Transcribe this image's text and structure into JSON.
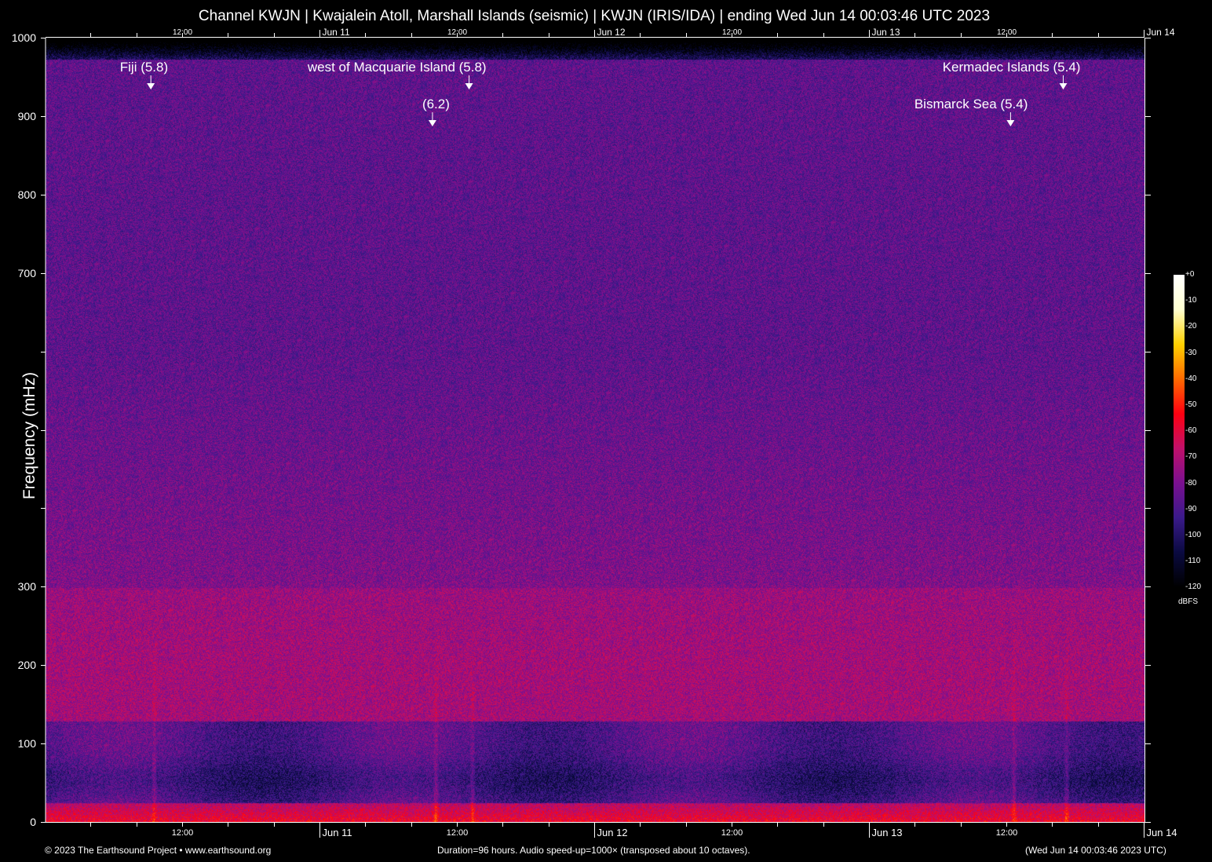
{
  "title": "Channel KWJN | Kwajalein Atoll, Marshall Islands (seismic) | KWJN (IRIS/IDA) | ending Wed Jun 14 00:03:46 UTC 2023",
  "footer": {
    "left": "© 2023 The Earthsound Project • www.earthsound.org",
    "center": "Duration=96 hours. Audio speed-up=1000× (transposed about 10 octaves).",
    "right": "(Wed Jun 14 00:03:46 2023 UTC)"
  },
  "chart_data": {
    "type": "heatmap",
    "title": "Channel KWJN | Kwajalein Atoll, Marshall Islands (seismic) | KWJN (IRIS/IDA) | ending Wed Jun 14 00:03:46 UTC 2023",
    "ylabel": "Frequency (mHz)",
    "xlabel": "",
    "ylim": [
      0,
      1000
    ],
    "xlim_hours": [
      0,
      96
    ],
    "x_start": "Jun 10 00:03:46 UTC",
    "x_end": "Jun 14 00:03:46 UTC",
    "y_ticks": [
      {
        "v": 0,
        "label": "0"
      },
      {
        "v": 100,
        "label": "100"
      },
      {
        "v": 200,
        "label": "200"
      },
      {
        "v": 300,
        "label": "300"
      },
      {
        "v": 400,
        "label": ""
      },
      {
        "v": 500,
        "label": ""
      },
      {
        "v": 600,
        "label": ""
      },
      {
        "v": 700,
        "label": "700"
      },
      {
        "v": 800,
        "label": "800"
      },
      {
        "v": 900,
        "label": "900"
      },
      {
        "v": 1000,
        "label": "1000"
      }
    ],
    "x_labels": [
      {
        "hour": 11.94,
        "label": "12:00",
        "kind": "time"
      },
      {
        "hour": 23.94,
        "label": "Jun 11",
        "kind": "day"
      },
      {
        "hour": 35.94,
        "label": "12:00",
        "kind": "time"
      },
      {
        "hour": 47.94,
        "label": "Jun 12",
        "kind": "day"
      },
      {
        "hour": 59.94,
        "label": "12:00",
        "kind": "time"
      },
      {
        "hour": 71.94,
        "label": "Jun 13",
        "kind": "day"
      },
      {
        "hour": 83.94,
        "label": "12:00",
        "kind": "time"
      },
      {
        "hour": 95.94,
        "label": "Jun 14",
        "kind": "day"
      }
    ],
    "colorbar": {
      "label": "dBFS",
      "range": [
        -120,
        0
      ],
      "ticks": [
        "+0",
        "-10",
        "-20",
        "-30",
        "-40",
        "-50",
        "-60",
        "-70",
        "-80",
        "-90",
        "-100",
        "-110",
        "-120"
      ],
      "colormap": [
        "#000000",
        "#0a0a40",
        "#3a1a8a",
        "#7a1090",
        "#c0106a",
        "#ff0010",
        "#ff6a00",
        "#ffd000",
        "#ffffd0",
        "#ffffff"
      ]
    },
    "events": [
      {
        "label": "Fiji (5.8)",
        "hour": 9.2,
        "row": 1
      },
      {
        "label": "west of Macquarie Island (5.8)",
        "hour": 37.0,
        "row": 1
      },
      {
        "label": "(6.2)",
        "hour": 33.8,
        "row": 2
      },
      {
        "label": "Kermadec Islands (5.4)",
        "hour": 88.9,
        "row": 1
      },
      {
        "label": "Bismarck Sea (5.4)",
        "hour": 84.3,
        "row": 2
      }
    ]
  }
}
